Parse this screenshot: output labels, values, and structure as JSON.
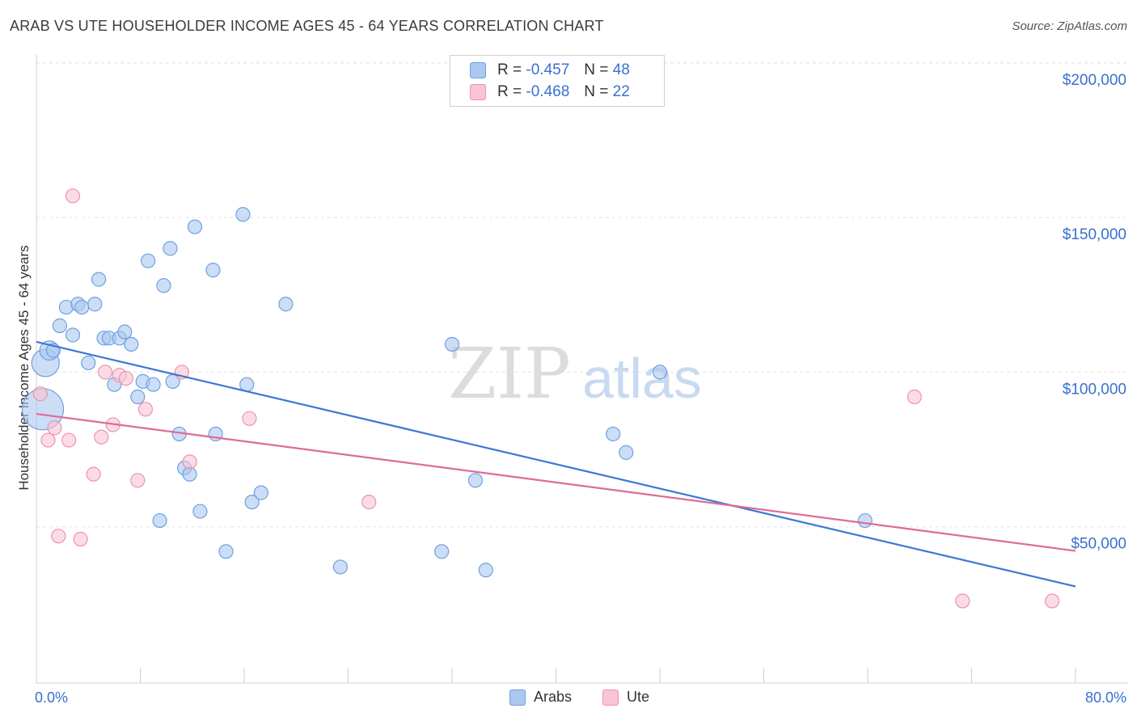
{
  "title": "ARAB VS UTE HOUSEHOLDER INCOME AGES 45 - 64 YEARS CORRELATION CHART",
  "source": "Source: ZipAtlas.com",
  "watermark": {
    "zip": "ZIP",
    "atlas": "atlas"
  },
  "legend": {
    "arab": {
      "r_label": "R =",
      "r_value": "-0.457",
      "n_label": "N =",
      "n_value": "48"
    },
    "ute": {
      "r_label": "R =",
      "r_value": "-0.468",
      "n_label": "N =",
      "n_value": "22"
    }
  },
  "bottom_legend": {
    "arab": "Arabs",
    "ute": "Ute"
  },
  "colors": {
    "arab_fill": "#aac8f0",
    "arab_stroke": "#6f9fe0",
    "arab_line": "#3a78d4",
    "ute_fill": "#f8c4d4",
    "ute_stroke": "#ee92ae",
    "ute_line": "#e06a98",
    "axis_text": "#3a6fd0",
    "grid": "#e3e3e3"
  },
  "chart_data": {
    "type": "scatter",
    "title": "ARAB VS UTE HOUSEHOLDER INCOME AGES 45 - 64 YEARS CORRELATION CHART",
    "xlabel": "",
    "ylabel": "Householder Income Ages 45 - 64 years",
    "xlim": [
      0,
      80
    ],
    "ylim": [
      0,
      205000
    ],
    "x_tick_labels": [
      "0.0%",
      "80.0%"
    ],
    "y_ticks": [
      50000,
      100000,
      150000,
      200000
    ],
    "y_tick_labels": [
      "$50,000",
      "$100,000",
      "$150,000",
      "$200,000"
    ],
    "series": [
      {
        "name": "Arabs",
        "points": [
          [
            0.5,
            88000,
            3
          ],
          [
            0.7,
            103000,
            2
          ],
          [
            1.0,
            107000,
            1.4
          ],
          [
            1.3,
            107000,
            1
          ],
          [
            1.8,
            115000,
            1
          ],
          [
            2.3,
            121000,
            1
          ],
          [
            2.8,
            112000,
            1
          ],
          [
            3.2,
            122000,
            1
          ],
          [
            3.5,
            121000,
            1
          ],
          [
            4.0,
            103000,
            1
          ],
          [
            4.5,
            122000,
            1
          ],
          [
            4.8,
            130000,
            1
          ],
          [
            5.2,
            111000,
            1
          ],
          [
            5.6,
            111000,
            1
          ],
          [
            6.0,
            96000,
            1
          ],
          [
            6.4,
            111000,
            1
          ],
          [
            6.8,
            113000,
            1
          ],
          [
            7.3,
            109000,
            1
          ],
          [
            7.8,
            92000,
            1
          ],
          [
            8.2,
            97000,
            1
          ],
          [
            8.6,
            136000,
            1
          ],
          [
            9.0,
            96000,
            1
          ],
          [
            9.5,
            52000,
            1
          ],
          [
            9.8,
            128000,
            1
          ],
          [
            10.3,
            140000,
            1
          ],
          [
            10.5,
            97000,
            1
          ],
          [
            11.0,
            80000,
            1
          ],
          [
            11.4,
            69000,
            1
          ],
          [
            11.8,
            67000,
            1
          ],
          [
            12.2,
            147000,
            1
          ],
          [
            12.6,
            55000,
            1
          ],
          [
            13.6,
            133000,
            1
          ],
          [
            13.8,
            80000,
            1
          ],
          [
            14.6,
            42000,
            1
          ],
          [
            15.9,
            151000,
            1
          ],
          [
            16.2,
            96000,
            1
          ],
          [
            16.6,
            58000,
            1
          ],
          [
            17.3,
            61000,
            1
          ],
          [
            19.2,
            122000,
            1
          ],
          [
            23.4,
            37000,
            1
          ],
          [
            31.2,
            42000,
            1
          ],
          [
            32.0,
            109000,
            1
          ],
          [
            33.8,
            65000,
            1
          ],
          [
            34.6,
            36000,
            1
          ],
          [
            44.4,
            80000,
            1
          ],
          [
            45.4,
            74000,
            1
          ],
          [
            48.0,
            100000,
            1
          ],
          [
            63.8,
            52000,
            1
          ]
        ],
        "trend": {
          "x": [
            0,
            80
          ],
          "y": [
            109800,
            30700
          ]
        }
      },
      {
        "name": "Ute",
        "points": [
          [
            0.3,
            93000,
            1
          ],
          [
            0.9,
            78000,
            1
          ],
          [
            1.4,
            82000,
            1
          ],
          [
            1.7,
            47000,
            1
          ],
          [
            2.5,
            78000,
            1
          ],
          [
            2.8,
            157000,
            1
          ],
          [
            3.4,
            46000,
            1
          ],
          [
            4.4,
            67000,
            1
          ],
          [
            5.0,
            79000,
            1
          ],
          [
            5.3,
            100000,
            1
          ],
          [
            5.9,
            83000,
            1
          ],
          [
            6.4,
            99000,
            1
          ],
          [
            6.9,
            98000,
            1
          ],
          [
            7.8,
            65000,
            1
          ],
          [
            8.4,
            88000,
            1
          ],
          [
            11.2,
            100000,
            1
          ],
          [
            11.8,
            71000,
            1
          ],
          [
            16.4,
            85000,
            1
          ],
          [
            25.6,
            58000,
            1
          ],
          [
            67.6,
            92000,
            1
          ],
          [
            71.3,
            26000,
            1
          ],
          [
            78.2,
            26000,
            1
          ]
        ],
        "trend": {
          "x": [
            0,
            80
          ],
          "y": [
            86500,
            42200
          ]
        }
      }
    ]
  }
}
